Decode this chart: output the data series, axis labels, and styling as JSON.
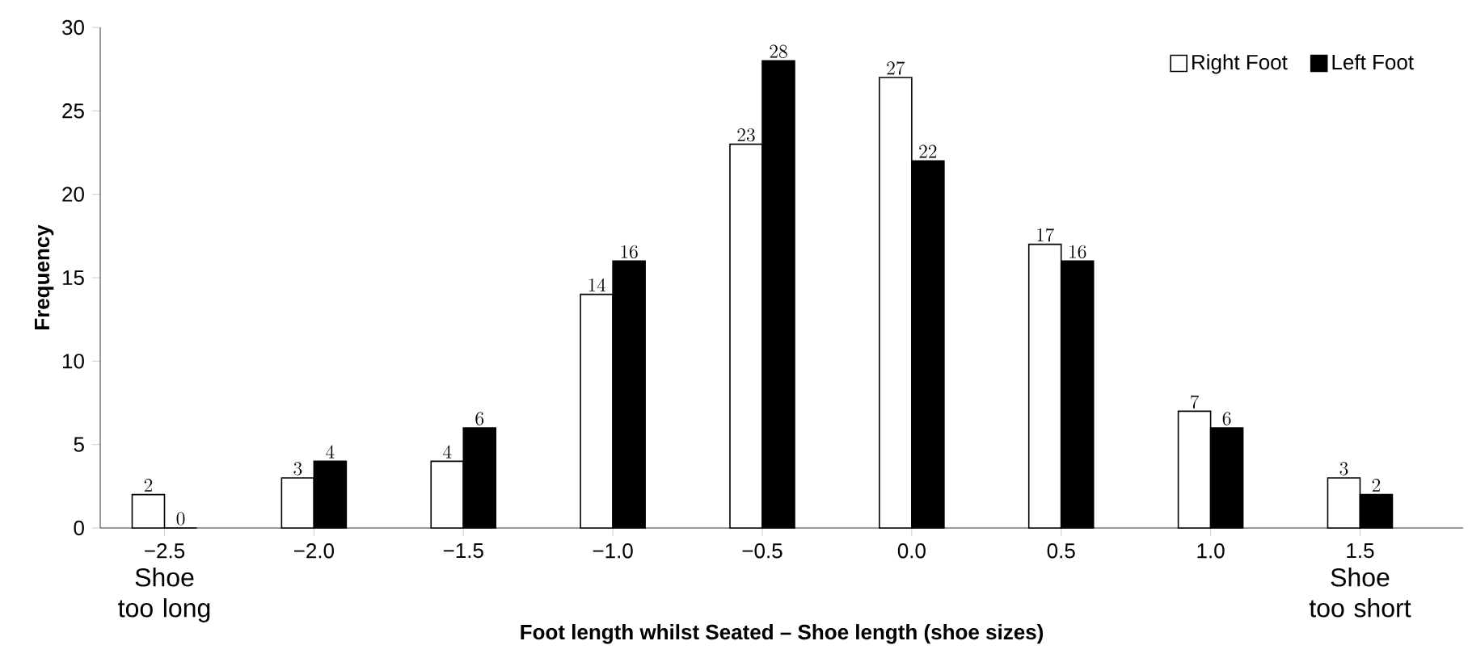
{
  "chart_data": {
    "type": "bar",
    "categories": [
      "−2.5",
      "−2.0",
      "−1.5",
      "−1.0",
      "−0.5",
      "0.0",
      "0.5",
      "1.0",
      "1.5"
    ],
    "series": [
      {
        "name": "Right Foot",
        "color": "#ffffff",
        "values": [
          2,
          3,
          4,
          14,
          23,
          27,
          17,
          7,
          3
        ]
      },
      {
        "name": "Left Foot",
        "color": "#000000",
        "values": [
          0,
          4,
          6,
          16,
          28,
          22,
          16,
          6,
          2
        ]
      }
    ],
    "xlabel": "Foot length whilst Seated – Shoe length (shoe sizes)",
    "ylabel": "Frequency",
    "ylim": [
      0,
      30
    ],
    "yticks": [
      0,
      5,
      10,
      15,
      20,
      25,
      30
    ],
    "data_labels": true,
    "legend": "top right",
    "grid": false,
    "annotations": [
      "Shoe too long",
      "Shoe too short"
    ]
  }
}
